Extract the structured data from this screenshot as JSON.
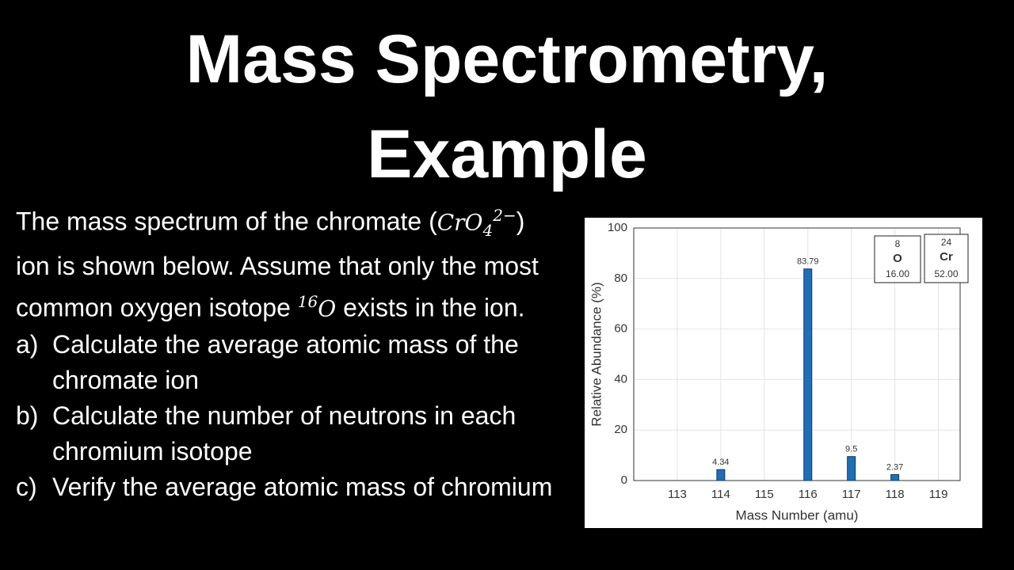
{
  "slide": {
    "title_line1": "Mass Spectrometry,",
    "title_line2": "Example",
    "intro": {
      "line1": "The mass spectrum of the chromate",
      "open_paren": "(",
      "formula": "CrO",
      "formula_sub": "4",
      "formula_sup": "2−",
      "line2": ") ion is shown below. Assume that only the most common oxygen isotope",
      "isotope_mass": "16",
      "isotope_symbol": "O",
      "line3": "exists in the ion."
    },
    "items": [
      {
        "label": "a)",
        "text": "Calculate the average atomic mass of the chromate ion"
      },
      {
        "label": "b)",
        "text": "Calculate the number of neutrons in each chromium isotope"
      },
      {
        "label": "c)",
        "text": "Verify the average atomic mass of chromium"
      }
    ]
  },
  "chart_data": {
    "type": "bar",
    "x": [
      114,
      116,
      117,
      118
    ],
    "values": [
      4.34,
      83.79,
      9.5,
      2.37
    ],
    "color": "#1f6fb8",
    "xlim": [
      112,
      119.5
    ],
    "xticks": [
      113,
      114,
      115,
      116,
      117,
      118,
      119
    ],
    "ylim": [
      0,
      100
    ],
    "yticks": [
      0,
      20,
      40,
      60,
      80,
      100
    ],
    "grid": true,
    "x_label": "Mass Number (amu)",
    "y_label": "Relative Abundance (%)",
    "elements": [
      {
        "number": "8",
        "symbol": "O",
        "mass": "16.00"
      },
      {
        "number": "24",
        "symbol": "Cr",
        "mass": "52.00"
      }
    ]
  }
}
